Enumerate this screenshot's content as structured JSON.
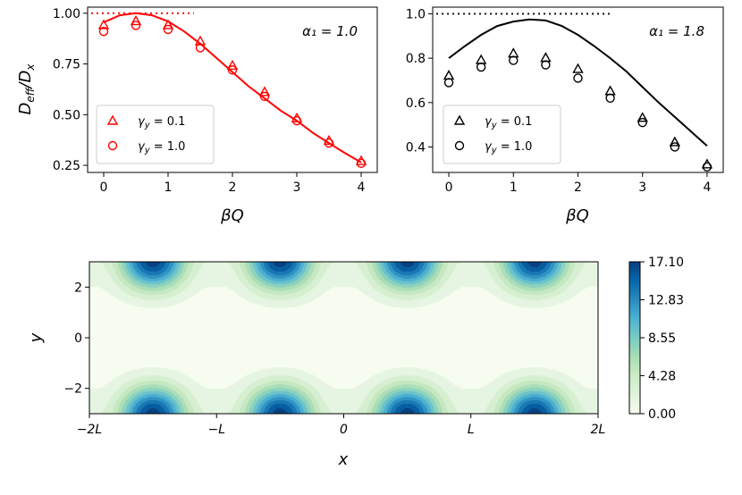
{
  "chart_data": [
    {
      "type": "scatter",
      "panel": "top-left",
      "annotation": "α₁ = 1.0",
      "xlabel": "βQ",
      "ylabel": "D_eff / D_x",
      "xlim": [
        -0.25,
        4.25
      ],
      "ylim": [
        0.215,
        1.03
      ],
      "xticks": [
        0,
        1,
        2,
        3,
        4
      ],
      "yticks": [
        0.25,
        0.5,
        0.75,
        1.0
      ],
      "ytick_labels": [
        "0.25",
        "0.50",
        "0.75",
        "1.00"
      ],
      "color": "#ff0000",
      "legend_position": "lower-left",
      "reference_line": {
        "y": 1.0,
        "x_range": [
          0,
          1.4
        ],
        "style": "dotted"
      },
      "curve": {
        "style": "solid",
        "x": [
          0,
          0.25,
          0.5,
          0.75,
          1,
          1.25,
          1.5,
          1.75,
          2,
          2.25,
          2.5,
          2.75,
          3,
          3.25,
          3.5,
          3.75,
          4
        ],
        "y": [
          0.955,
          0.99,
          1.0,
          0.99,
          0.96,
          0.91,
          0.85,
          0.78,
          0.71,
          0.64,
          0.58,
          0.52,
          0.47,
          0.41,
          0.36,
          0.31,
          0.265
        ]
      },
      "series": [
        {
          "name": "γ_y = 0.1",
          "marker": "triangle",
          "x": [
            0,
            0.5,
            1,
            1.5,
            2,
            2.5,
            3,
            3.5,
            4
          ],
          "y": [
            0.94,
            0.96,
            0.94,
            0.86,
            0.74,
            0.61,
            0.48,
            0.37,
            0.27
          ]
        },
        {
          "name": "γ_y = 1.0",
          "marker": "circle",
          "x": [
            0,
            0.5,
            1,
            1.5,
            2,
            2.5,
            3,
            3.5,
            4
          ],
          "y": [
            0.91,
            0.94,
            0.92,
            0.83,
            0.72,
            0.59,
            0.47,
            0.36,
            0.26
          ]
        }
      ],
      "legend": [
        {
          "label_greek": "γ",
          "label_sub": "y",
          "label_rest": " = 0.1",
          "marker": "triangle"
        },
        {
          "label_greek": "γ",
          "label_sub": "y",
          "label_rest": " = 1.0",
          "marker": "circle"
        }
      ]
    },
    {
      "type": "scatter",
      "panel": "top-right",
      "annotation": "α₁ = 1.8",
      "xlabel": "βQ",
      "xlim": [
        -0.25,
        4.25
      ],
      "ylim": [
        0.285,
        1.03
      ],
      "xticks": [
        0,
        1,
        2,
        3,
        4
      ],
      "yticks": [
        0.4,
        0.6,
        0.8,
        1.0
      ],
      "ytick_labels": [
        "0.4",
        "0.6",
        "0.8",
        "1.0"
      ],
      "color": "#000000",
      "legend_position": "lower-left",
      "reference_line": {
        "y": 1.0,
        "x_range": [
          0,
          2.5
        ],
        "style": "dotted"
      },
      "curve": {
        "style": "solid",
        "x": [
          0,
          0.25,
          0.5,
          0.75,
          1,
          1.25,
          1.5,
          1.75,
          2,
          2.25,
          2.5,
          2.75,
          3,
          3.25,
          3.5,
          3.75,
          4
        ],
        "y": [
          0.8,
          0.855,
          0.905,
          0.945,
          0.965,
          0.975,
          0.97,
          0.945,
          0.905,
          0.855,
          0.8,
          0.74,
          0.67,
          0.6,
          0.535,
          0.47,
          0.405
        ]
      },
      "series": [
        {
          "name": "γ_y = 0.1",
          "marker": "triangle",
          "x": [
            0,
            0.5,
            1,
            1.5,
            2,
            2.5,
            3,
            3.5,
            4
          ],
          "y": [
            0.72,
            0.79,
            0.82,
            0.8,
            0.75,
            0.65,
            0.53,
            0.42,
            0.32
          ]
        },
        {
          "name": "γ_y = 1.0",
          "marker": "circle",
          "x": [
            0,
            0.5,
            1,
            1.5,
            2,
            2.5,
            3,
            3.5,
            4
          ],
          "y": [
            0.69,
            0.76,
            0.79,
            0.77,
            0.71,
            0.62,
            0.51,
            0.4,
            0.31
          ]
        }
      ],
      "legend": [
        {
          "label_greek": "γ",
          "label_sub": "y",
          "label_rest": " = 0.1",
          "marker": "triangle"
        },
        {
          "label_greek": "γ",
          "label_sub": "y",
          "label_rest": " = 1.0",
          "marker": "circle"
        }
      ]
    },
    {
      "type": "heatmap",
      "panel": "bottom",
      "xlabel": "x",
      "ylabel": "y",
      "xlim": [
        -2,
        2
      ],
      "ylim": [
        -3,
        3
      ],
      "xtick_labels": [
        "−2L",
        "−L",
        "0",
        "L",
        "2L"
      ],
      "yticks": [
        -2,
        0,
        2
      ],
      "ytick_labels": [
        "−2",
        "0",
        "2"
      ],
      "colormap": "GnBu",
      "colorbar": {
        "range": [
          0.0,
          17.1
        ],
        "ticks": [
          0.0,
          4.28,
          8.55,
          12.83,
          17.1
        ],
        "tick_labels": [
          "0.00",
          "4.28",
          "8.55",
          "12.83",
          "17.10"
        ]
      },
      "features": "maxima at y = ±3 centered at x = −1.5L, −0.5L, 0.5L, 1.5L (periodic); minima near y = 0"
    }
  ]
}
